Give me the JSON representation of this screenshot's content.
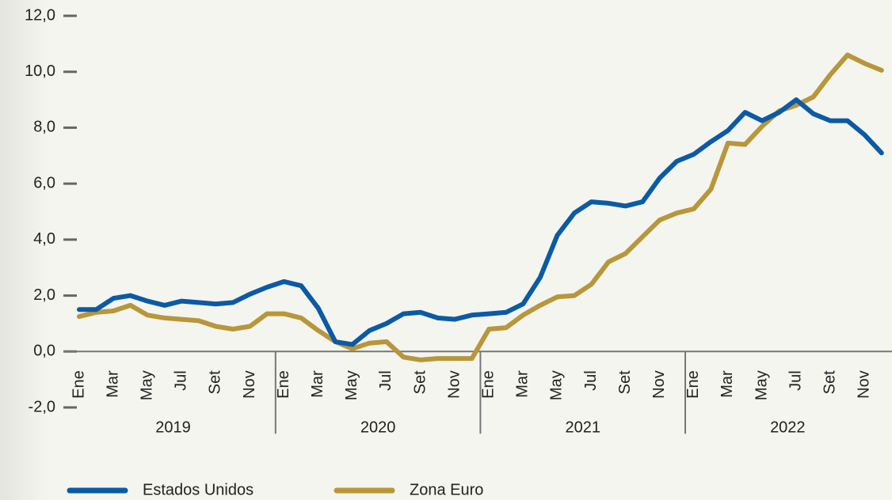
{
  "chart_data": {
    "type": "line",
    "categories": [
      "Ene",
      null,
      "Mar",
      null,
      "May",
      null,
      "Jul",
      null,
      "Set",
      null,
      "Nov",
      null,
      "Ene",
      null,
      "Mar",
      null,
      "May",
      null,
      "Jul",
      null,
      "Set",
      null,
      "Nov",
      null,
      "Ene",
      null,
      "Mar",
      null,
      "May",
      null,
      "Jul",
      null,
      "Set",
      null,
      "Nov",
      null,
      "Ene",
      null,
      "Mar",
      null,
      "May",
      null,
      "Jul",
      null,
      "Set",
      null,
      "Nov",
      null
    ],
    "year_labels": [
      "2019",
      "2020",
      "2021",
      "2022"
    ],
    "series": [
      {
        "name": "Estados Unidos",
        "color": "#0b5aa6",
        "values": [
          1.5,
          1.5,
          1.9,
          2.0,
          1.8,
          1.65,
          1.8,
          1.75,
          1.7,
          1.75,
          2.05,
          2.3,
          2.5,
          2.35,
          1.55,
          0.35,
          0.25,
          0.75,
          1.0,
          1.35,
          1.4,
          1.2,
          1.15,
          1.3,
          1.35,
          1.4,
          1.7,
          2.65,
          4.15,
          4.95,
          5.35,
          5.3,
          5.2,
          5.35,
          6.2,
          6.8,
          7.05,
          7.5,
          7.9,
          8.55,
          8.25,
          8.55,
          9.0,
          8.5,
          8.25,
          8.25,
          7.75,
          7.1
        ]
      },
      {
        "name": "Zona Euro",
        "color": "#b8963a",
        "values": [
          1.25,
          1.4,
          1.45,
          1.65,
          1.3,
          1.2,
          1.15,
          1.1,
          0.9,
          0.8,
          0.9,
          1.35,
          1.35,
          1.2,
          0.75,
          0.35,
          0.1,
          0.3,
          0.35,
          -0.2,
          -0.3,
          -0.25,
          -0.25,
          -0.25,
          0.8,
          0.85,
          1.3,
          1.65,
          1.95,
          2.0,
          2.4,
          3.2,
          3.5,
          4.1,
          4.7,
          4.95,
          5.1,
          5.8,
          7.45,
          7.4,
          8.05,
          8.6,
          8.8,
          9.1,
          9.9,
          10.6,
          10.3,
          10.05
        ]
      }
    ],
    "ylim": [
      -2,
      12
    ],
    "yticks": [
      {
        "value": -2,
        "label": "-2,0"
      },
      {
        "value": 0,
        "label": "0,0"
      },
      {
        "value": 2,
        "label": "2,0"
      },
      {
        "value": 4,
        "label": "4,0"
      },
      {
        "value": 6,
        "label": "6,0"
      },
      {
        "value": 8,
        "label": "8,0"
      },
      {
        "value": 10,
        "label": "10,0"
      },
      {
        "value": 12,
        "label": "12,0"
      }
    ],
    "legend": "bottom"
  }
}
